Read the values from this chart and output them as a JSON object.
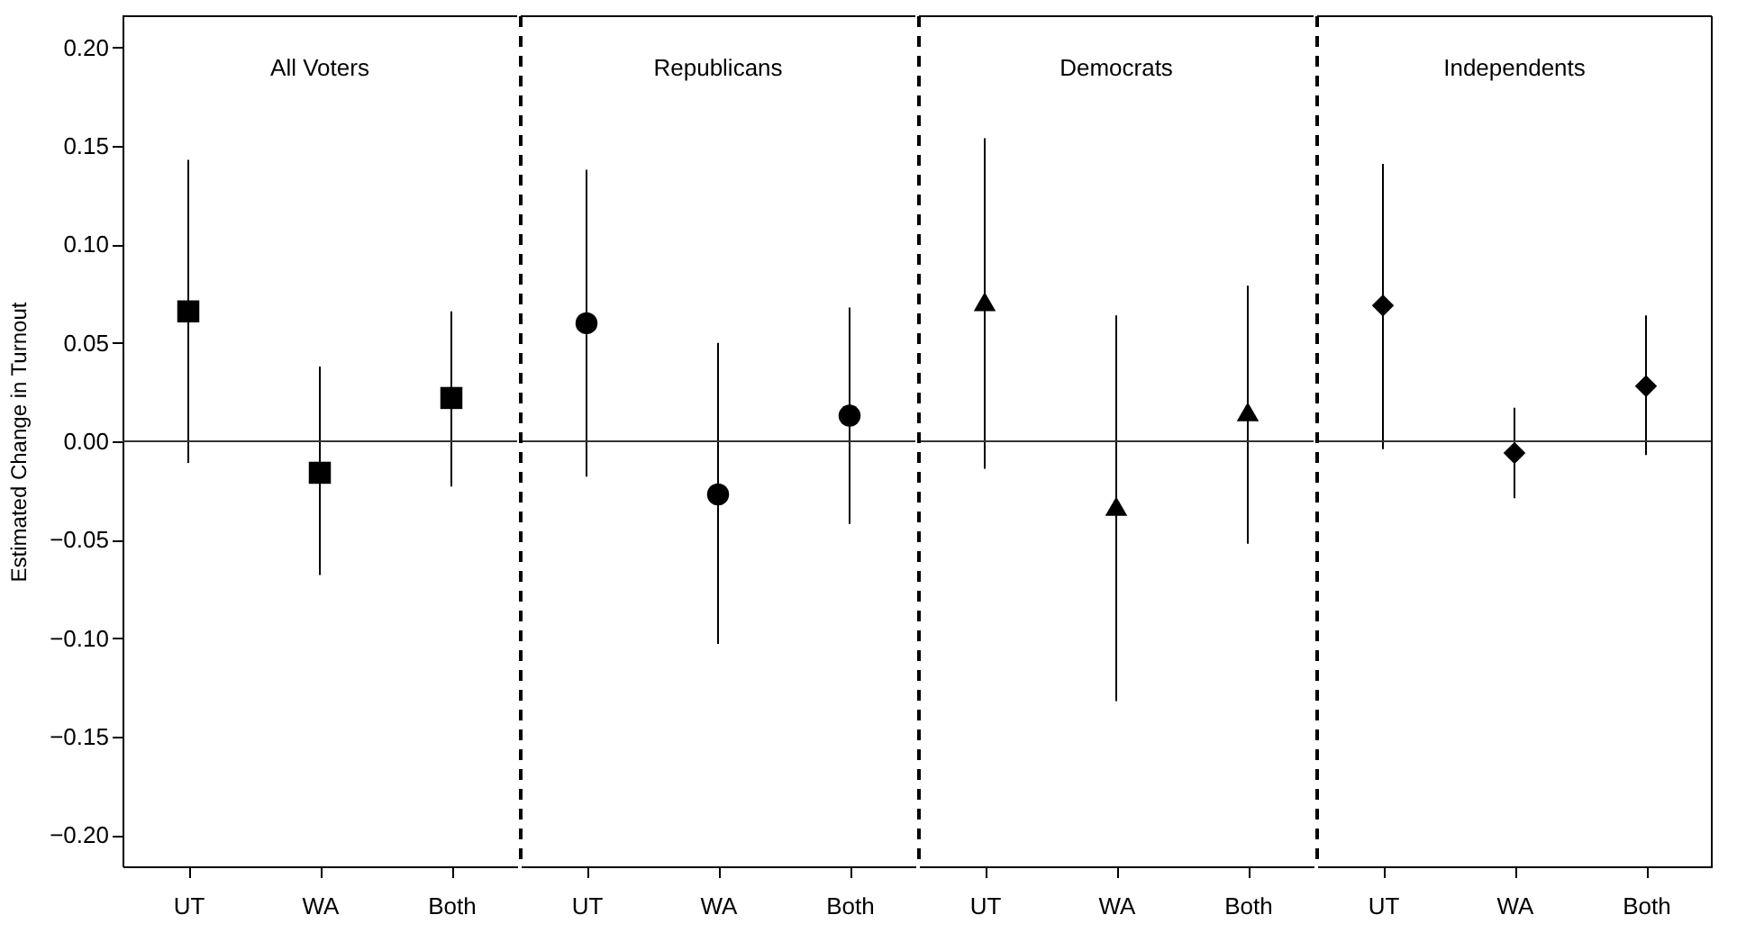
{
  "chart_data": [
    {
      "type": "scatter",
      "title": "All Voters",
      "ylabel": "Estimated Change in Turnout",
      "categories": [
        "UT",
        "WA",
        "Both"
      ],
      "values": [
        0.066,
        -0.016,
        0.022
      ],
      "errors": [
        [
          -0.011,
          0.143
        ],
        [
          -0.068,
          0.038
        ],
        [
          -0.023,
          0.066
        ]
      ],
      "color": "#000000",
      "marker": "square",
      "ylim": [
        -0.216,
        0.216
      ],
      "yticks": [
        {
          "value": -0.2,
          "label": "−0.20"
        },
        {
          "value": -0.15,
          "label": "−0.15"
        },
        {
          "value": -0.1,
          "label": "−0.10"
        },
        {
          "value": -0.05,
          "label": "−0.05"
        },
        {
          "value": 0,
          "label": "0.00"
        },
        {
          "value": 0.05,
          "label": "0.05"
        },
        {
          "value": 0.1,
          "label": "0.10"
        },
        {
          "value": 0.15,
          "label": "0.15"
        },
        {
          "value": 0.2,
          "label": "0.20"
        }
      ],
      "ref_lines": [
        {
          "axis": "y",
          "value": 0
        }
      ]
    },
    {
      "type": "scatter",
      "title": "Republicans",
      "categories": [
        "UT",
        "WA",
        "Both"
      ],
      "values": [
        0.06,
        -0.027,
        0.013
      ],
      "errors": [
        [
          -0.018,
          0.138
        ],
        [
          -0.103,
          0.05
        ],
        [
          -0.042,
          0.068
        ]
      ],
      "color": "#000000",
      "marker": "circle",
      "ylim": [
        -0.216,
        0.216
      ],
      "tick_labels": "x",
      "ref_lines": [
        {
          "axis": "y",
          "value": 0
        }
      ]
    },
    {
      "type": "scatter",
      "title": "Democrats",
      "categories": [
        "UT",
        "WA",
        "Both"
      ],
      "values": [
        0.071,
        -0.033,
        0.015
      ],
      "errors": [
        [
          -0.014,
          0.154
        ],
        [
          -0.132,
          0.064
        ],
        [
          -0.052,
          0.079
        ]
      ],
      "color": "#000000",
      "marker": "triangle",
      "ylim": [
        -0.216,
        0.216
      ],
      "tick_labels": "x",
      "ref_lines": [
        {
          "axis": "y",
          "value": 0
        }
      ]
    },
    {
      "type": "scatter",
      "title": "Independents",
      "categories": [
        "UT",
        "WA",
        "Both"
      ],
      "values": [
        0.069,
        -0.006,
        0.028
      ],
      "errors": [
        [
          -0.004,
          0.141
        ],
        [
          -0.029,
          0.017
        ],
        [
          -0.007,
          0.064
        ]
      ],
      "color": "#000000",
      "marker": "diamond",
      "ylim": [
        -0.216,
        0.216
      ],
      "tick_labels": "x",
      "ref_lines": [
        {
          "axis": "y",
          "value": 0
        }
      ]
    }
  ]
}
